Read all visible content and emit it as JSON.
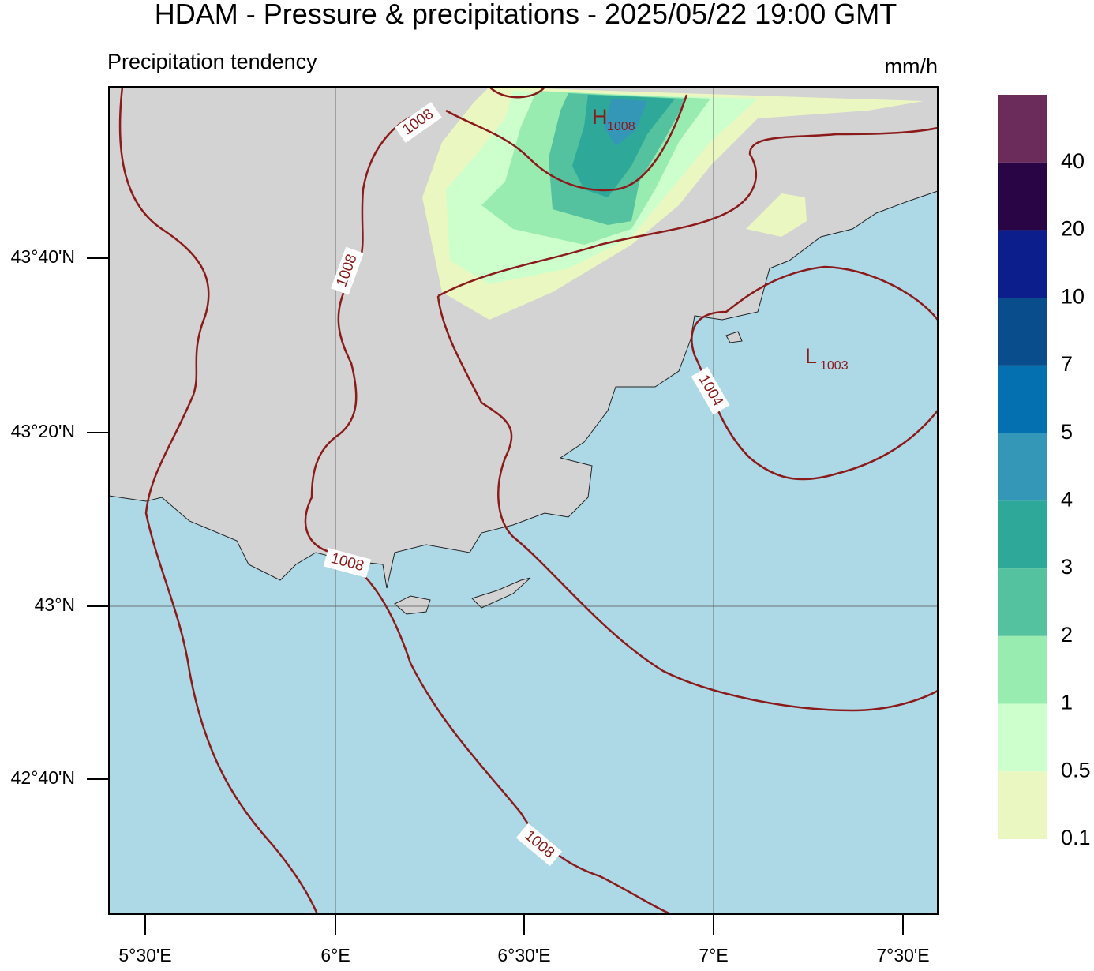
{
  "header": {
    "title": "HDAM - Pressure & precipitations  -  2025/05/22  19:00 GMT",
    "subtitle": "Precipitation tendency",
    "units": "mm/h"
  },
  "colorbar": {
    "labels": [
      "40",
      "20",
      "10",
      "7",
      "5",
      "4",
      "3",
      "2",
      "1",
      "0.5",
      "0.1"
    ],
    "colors": [
      "#6b2c5c",
      "#2a0545",
      "#0c1e8c",
      "#0a4d8c",
      "#0570b0",
      "#3497b8",
      "#2ea898",
      "#54c19f",
      "#99ecb0",
      "#ccffcc",
      "#ebf7c0"
    ]
  },
  "axes": {
    "lat_labels": [
      "43°40'N",
      "43°20'N",
      "43°N",
      "42°40'N"
    ],
    "lon_labels": [
      "5°30'E",
      "6°E",
      "6°30'E",
      "7°E",
      "7°30'E"
    ]
  },
  "contour_labels": [
    "1008",
    "1008",
    "1004",
    "1008",
    "1008"
  ],
  "centers": [
    {
      "letter": "H",
      "value": "1008"
    },
    {
      "letter": "L",
      "value": "1003"
    }
  ]
}
